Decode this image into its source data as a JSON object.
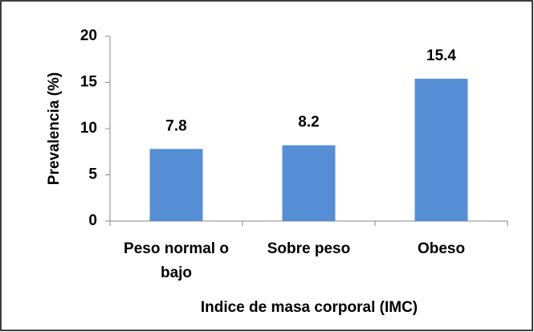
{
  "chart_data": {
    "type": "bar",
    "categories": [
      "Peso normal o bajo",
      "Sobre peso",
      "Obeso"
    ],
    "values": [
      7.8,
      8.2,
      15.4
    ],
    "color": "#558ed5",
    "ylim": [
      0,
      20
    ],
    "yticks": [
      0,
      5,
      10,
      15,
      20
    ],
    "xlabel": "Indice de masa corporal (IMC)",
    "ylabel": "Prevalencia (%)",
    "grid": false
  }
}
